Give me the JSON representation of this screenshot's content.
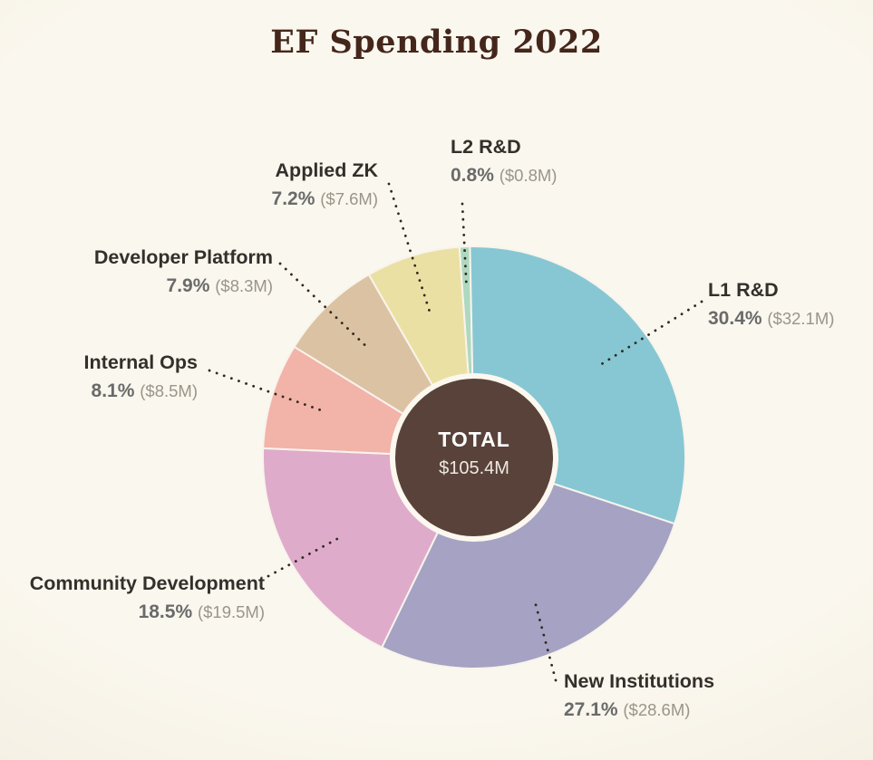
{
  "title": "EF Spending 2022",
  "chart_data": {
    "type": "pie",
    "subtype": "donut",
    "title": "EF Spending 2022",
    "direction": "clockwise",
    "start_angle_offset_deg": -4,
    "legend": "none",
    "center_label": {
      "heading": "TOTAL",
      "value": "$105.4M"
    },
    "slices": [
      {
        "id": "l2-rd",
        "label": "L2 R&D",
        "pct": 0.8,
        "pct_label": "0.8%",
        "amount": "($0.8M)",
        "color": "#aed8c0"
      },
      {
        "id": "l1-rd",
        "label": "L1 R&D",
        "pct": 30.4,
        "pct_label": "30.4%",
        "amount": "($32.1M)",
        "color": "#87c7d3"
      },
      {
        "id": "new-institutions",
        "label": "New Institutions",
        "pct": 27.1,
        "pct_label": "27.1%",
        "amount": "($28.6M)",
        "color": "#a5a2c3"
      },
      {
        "id": "community-development",
        "label": "Community Development",
        "pct": 18.5,
        "pct_label": "18.5%",
        "amount": "($19.5M)",
        "color": "#dfabcb"
      },
      {
        "id": "internal-ops",
        "label": "Internal Ops",
        "pct": 8.1,
        "pct_label": "8.1%",
        "amount": "($8.5M)",
        "color": "#f2b3a9"
      },
      {
        "id": "developer-platform",
        "label": "Developer Platform",
        "pct": 7.9,
        "pct_label": "7.9%",
        "amount": "($8.3M)",
        "color": "#dbc2a3"
      },
      {
        "id": "applied-zk",
        "label": "Applied ZK",
        "pct": 7.2,
        "pct_label": "7.2%",
        "amount": "($7.6M)",
        "color": "#ebe0a4"
      }
    ],
    "colors": {
      "background": "#f8f4ec",
      "title_text": "#45261b",
      "label_text": "#33302b",
      "pct_text": "#6a6a6a",
      "amount_text": "#9a958b",
      "center_circle": "#58423a",
      "center_circle_ring": "#fcf8ef",
      "center_text": "#ffffff",
      "leader_line": "#32291f"
    }
  }
}
